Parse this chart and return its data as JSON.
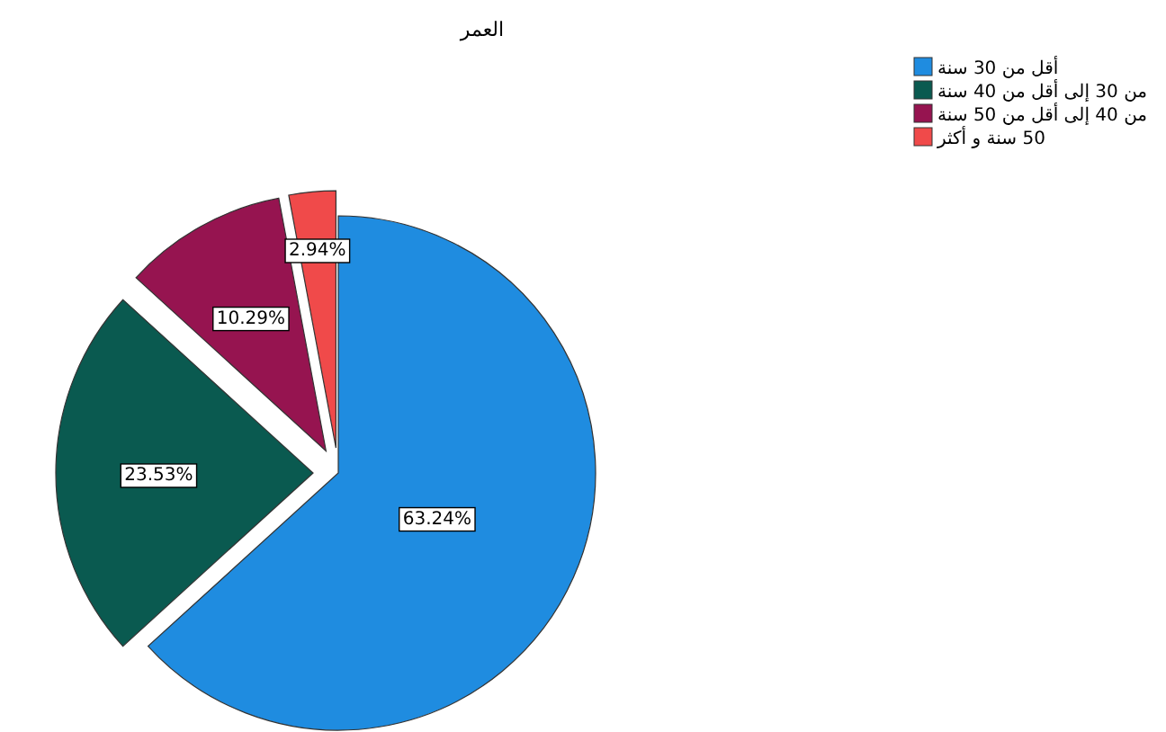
{
  "chart_data": {
    "type": "pie",
    "title": "العمر",
    "categories": [
      "أقل من 30 سنة",
      "من 30 إلى أقل من 40 سنة",
      "من 40 إلى أقل من 50 سنة",
      "50 سنة و أكثر"
    ],
    "values": [
      63.24,
      23.53,
      10.29,
      2.94
    ],
    "colors": [
      "#1f8ce0",
      "#0a5a50",
      "#961450",
      "#f04a4a"
    ],
    "value_labels": [
      "63.24%",
      "23.53%",
      "10.29%",
      "2.94%"
    ],
    "legend": "top right"
  }
}
